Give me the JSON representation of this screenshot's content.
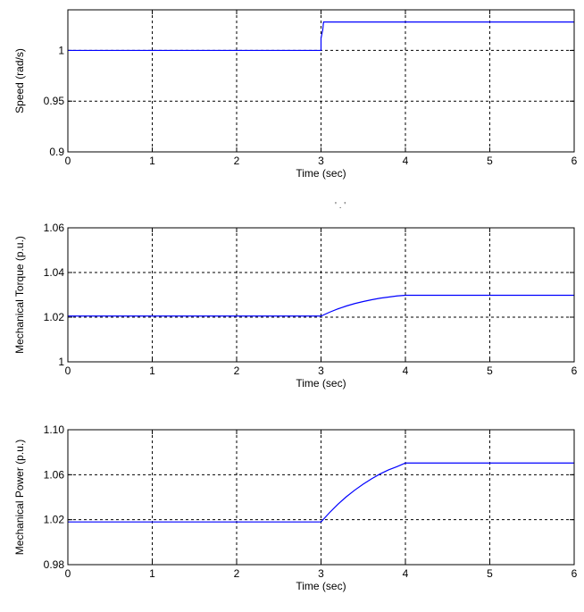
{
  "chart_data": [
    {
      "type": "line",
      "title": "",
      "xlabel": "Time (sec)",
      "ylabel": "Speed (rad/s)",
      "xlim": [
        0,
        6
      ],
      "ylim": [
        0.9,
        1.04
      ],
      "xticks": [
        0,
        1,
        2,
        3,
        4,
        5,
        6
      ],
      "yticks": [
        0.9,
        0.95,
        1
      ],
      "ytick_labels": [
        "0.9",
        "0.95",
        "1"
      ],
      "grid": true,
      "line_color": "#0000ff",
      "series": [
        {
          "x": [
            0,
            3.0,
            3.0,
            3.02,
            3.03,
            6
          ],
          "y": [
            1.0,
            1.0,
            1.012,
            1.02,
            1.028,
            1.028
          ]
        }
      ]
    },
    {
      "type": "line",
      "title": "",
      "xlabel": "Time (sec)",
      "ylabel": "Mechanical Torque (p.u.)",
      "xlim": [
        0,
        6
      ],
      "ylim": [
        1,
        1.06
      ],
      "xticks": [
        0,
        1,
        2,
        3,
        4,
        5,
        6
      ],
      "yticks": [
        1,
        1.02,
        1.04,
        1.06
      ],
      "ytick_labels": [
        "1",
        "1.02",
        "1.04",
        "1.06"
      ],
      "grid": true,
      "line_color": "#0000ff",
      "series": [
        {
          "x": [
            0,
            3.0,
            3.1,
            3.2,
            3.3,
            3.4,
            3.5,
            3.6,
            3.7,
            3.8,
            3.9,
            4.0,
            6
          ],
          "y": [
            1.0205,
            1.0205,
            1.0222,
            1.0237,
            1.025,
            1.0261,
            1.027,
            1.0278,
            1.0285,
            1.029,
            1.0295,
            1.0298,
            1.0298
          ]
        }
      ]
    },
    {
      "type": "line",
      "title": "",
      "xlabel": "Time (sec)",
      "ylabel": "Mechanical Power (p.u.)",
      "xlim": [
        0,
        6
      ],
      "ylim": [
        0.98,
        1.1
      ],
      "xticks": [
        0,
        1,
        2,
        3,
        4,
        5,
        6
      ],
      "yticks": [
        0.98,
        1.02,
        1.06,
        1.1
      ],
      "ytick_labels": [
        "0.98",
        "1.02",
        "1.06",
        "1.10"
      ],
      "grid": true,
      "line_color": "#0000ff",
      "series": [
        {
          "x": [
            0,
            3.0,
            3.1,
            3.2,
            3.3,
            3.4,
            3.5,
            3.6,
            3.7,
            3.8,
            3.9,
            4.0,
            6
          ],
          "y": [
            1.018,
            1.018,
            1.0262,
            1.0337,
            1.0404,
            1.0463,
            1.0516,
            1.0564,
            1.0607,
            1.0643,
            1.0672,
            1.0704,
            1.0704
          ]
        }
      ]
    }
  ],
  "stray_mark": "' . '"
}
